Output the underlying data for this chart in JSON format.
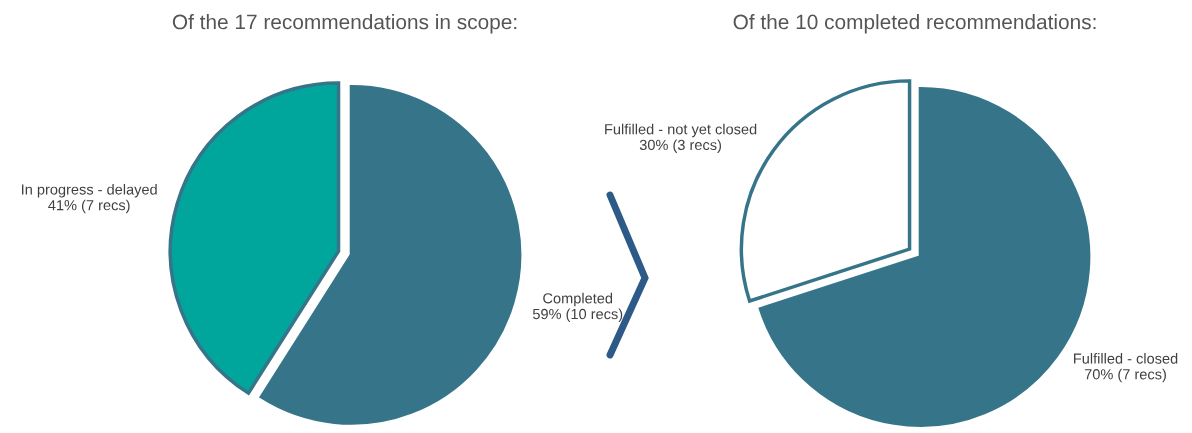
{
  "chart_data": [
    {
      "type": "pie",
      "title": "Of the 17 recommendations in scope:",
      "categories": [
        "Completed",
        "In progress - delayed"
      ],
      "values": [
        59,
        41
      ],
      "value_labels": [
        "59% (10 recs)",
        "41% (7 recs)"
      ],
      "colors": [
        "#367589",
        "#00a69c"
      ],
      "legend": false
    },
    {
      "type": "pie",
      "title": "Of the 10 completed recommendations:",
      "categories": [
        "Fulfilled - closed",
        "Fulfilled - not yet closed"
      ],
      "values": [
        70,
        30
      ],
      "value_labels": [
        "70% (7 recs)",
        "30% (3 recs)"
      ],
      "colors": [
        "#367589",
        "#ffffff"
      ],
      "legend": false
    }
  ]
}
